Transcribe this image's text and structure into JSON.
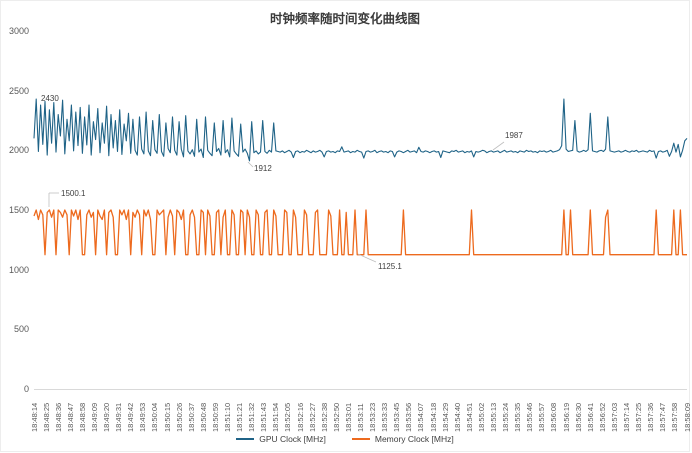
{
  "chart_data": {
    "type": "line",
    "title": "时钟频率随时间变化曲线图",
    "grid": false,
    "legend_position": "bottom",
    "y_axis": {
      "min": 0,
      "max": 3000,
      "ticks": [
        3000,
        2500,
        2000,
        1500,
        1000,
        500,
        0
      ]
    },
    "x_axis": {
      "start": "18:48:14",
      "end": "18:58:09",
      "labels": [
        "18:48:14",
        "18:48:25",
        "18:48:36",
        "18:48:47",
        "18:48:58",
        "18:49:09",
        "18:49:20",
        "18:49:31",
        "18:49:42",
        "18:49:53",
        "18:50:04",
        "18:50:15",
        "18:50:26",
        "18:50:37",
        "18:50:48",
        "18:50:59",
        "18:51:10",
        "18:51:21",
        "18:51:32",
        "18:51:43",
        "18:51:54",
        "18:52:05",
        "18:52:16",
        "18:52:27",
        "18:52:38",
        "18:52:50",
        "18:53:01",
        "18:53:11",
        "18:53:23",
        "18:53:33",
        "18:53:45",
        "18:53:56",
        "18:54:07",
        "18:54:18",
        "18:54:29",
        "18:54:40",
        "18:54:51",
        "18:55:02",
        "18:55:13",
        "18:55:24",
        "18:55:35",
        "18:55:46",
        "18:55:57",
        "18:56:08",
        "18:56:19",
        "18:56:30",
        "18:56:41",
        "18:56:52",
        "18:57:03",
        "18:57:14",
        "18:57:25",
        "18:57:36",
        "18:57:47",
        "18:57:58",
        "18:58:09"
      ]
    },
    "legend": [
      {
        "label": "GPU Clock [MHz]",
        "color": "#1f6387"
      },
      {
        "label": "Memory Clock [MHz]",
        "color": "#ed6a1e"
      }
    ],
    "annotations": [
      {
        "label": "2430",
        "x": 40,
        "y": 93,
        "lines": []
      },
      {
        "label": "1912",
        "x": 253,
        "y": 163,
        "lines": [
          [
            247,
            161,
            252,
            166
          ]
        ]
      },
      {
        "label": "1987",
        "x": 504,
        "y": 130,
        "lines": [
          [
            503,
            141,
            492,
            149
          ]
        ]
      },
      {
        "label": "1500.1",
        "x": 60,
        "y": 188,
        "lines": [
          [
            48,
            192,
            58,
            192
          ],
          [
            48,
            192,
            48,
            206
          ]
        ]
      },
      {
        "label": "1125.1",
        "x": 377,
        "y": 261,
        "lines": [
          [
            357,
            253,
            375,
            261
          ]
        ]
      }
    ],
    "series": [
      {
        "id": "gpu-clock-line",
        "name": "GPU Clock [MHz]",
        "color": "#1f6387",
        "width": 1.1,
        "stats": {
          "max": 2430,
          "min": 1912,
          "steady": 1987
        },
        "values": [
          2100,
          2430,
          1990,
          2380,
          2050,
          2410,
          1960,
          2340,
          2060,
          2400,
          1985,
          2300,
          2120,
          2420,
          1970,
          2260,
          2080,
          2380,
          1995,
          2320,
          2040,
          2360,
          1975,
          2280,
          2045,
          2380,
          1960,
          2240,
          2090,
          2350,
          1980,
          2230,
          2060,
          2370,
          1955,
          2300,
          2020,
          2250,
          1990,
          2340,
          1965,
          2220,
          2080,
          2310,
          1975,
          2260,
          2000,
          1960,
          2280,
          2010,
          1970,
          2320,
          1995,
          1955,
          2250,
          2005,
          1975,
          2300,
          1990,
          1950,
          2230,
          2015,
          1980,
          2280,
          2000,
          1960,
          2240,
          2010,
          1945,
          2290,
          1995,
          1970,
          2005,
          1950,
          2260,
          1985,
          2010,
          1940,
          2280,
          2000,
          1975,
          1955,
          2230,
          1990,
          2015,
          1960,
          2250,
          1980,
          2005,
          1945,
          2270,
          1995,
          1970,
          1950,
          2220,
          1985,
          2010,
          1975,
          1912,
          2240,
          1980,
          1995,
          1970,
          1985,
          2250,
          1990,
          1975,
          2000,
          1985,
          2230,
          1995,
          1990,
          1985,
          1995,
          1980,
          1990,
          2000,
          1985,
          1940,
          1990,
          1995,
          1980,
          1990,
          1985,
          2000,
          1990,
          1980,
          1995,
          1985,
          1990,
          2000,
          1985,
          1945,
          1990,
          1995,
          1985,
          1990,
          1980,
          1995,
          1990,
          2030,
          1985,
          1990,
          1995,
          1980,
          1990,
          1985,
          2000,
          1990,
          1985,
          1935,
          1990,
          1995,
          1985,
          1990,
          2000,
          1980,
          1990,
          1995,
          1985,
          1990,
          1980,
          1995,
          1990,
          1945,
          1985,
          1995,
          1990,
          1980,
          1990,
          2000,
          1985,
          1990,
          1995,
          1980,
          2025,
          1990,
          1985,
          1995,
          1990,
          1980,
          1990,
          1995,
          1985,
          1990,
          1940,
          1995,
          1990,
          1985,
          1980,
          1995,
          1990,
          2000,
          1985,
          1990,
          1995,
          1980,
          1990,
          1985,
          1995,
          1945,
          1990,
          1985,
          1990,
          2000,
          1995,
          1980,
          1990,
          1995,
          1985,
          1990,
          1995,
          1980,
          1990,
          2000,
          1985,
          1990,
          1995,
          1985,
          1990,
          1980,
          1995,
          1990,
          1985,
          2000,
          1990,
          1995,
          1985,
          1990,
          1980,
          1995,
          1990,
          1995,
          1985,
          1990,
          2000,
          1985,
          1990,
          1995,
          2005,
          2040,
          2430,
          2010,
          1990,
          1995,
          2000,
          2250,
          1995,
          1985,
          1990,
          2000,
          1990,
          2005,
          2310,
          1995,
          1990,
          1985,
          1995,
          2000,
          1990,
          2010,
          2280,
          1995,
          1990,
          1985,
          1990,
          1995,
          1985,
          1990,
          2000,
          1990,
          1985,
          1995,
          1990,
          2000,
          1985,
          1990,
          1995,
          1990,
          1985,
          2000,
          1990,
          1995,
          1935,
          1990,
          1995,
          1985,
          1990,
          2000,
          1950,
          1990,
          2060,
          1985,
          2050,
          1945,
          2000,
          2080,
          2100
        ]
      },
      {
        "id": "memory-clock-line",
        "name": "Memory Clock [MHz]",
        "color": "#ed6a1e",
        "width": 1.3,
        "stats": {
          "max": 1500.1,
          "min": 1125.1
        },
        "values": [
          1450,
          1500.1,
          1420,
          1500.1,
          1460,
          1125.1,
          1480,
          1500.1,
          1440,
          1500.1,
          1125.1,
          1500.1,
          1480,
          1440,
          1500.1,
          1460,
          1125.1,
          1500.1,
          1450,
          1500.1,
          1420,
          1500.1,
          1125.1,
          1125.1,
          1460,
          1500.1,
          1440,
          1480,
          1125.1,
          1500.1,
          1450,
          1420,
          1500.1,
          1125.1,
          1480,
          1500.1,
          1440,
          1125.1,
          1125.1,
          1500.1,
          1460,
          1500.1,
          1420,
          1500.1,
          1125.1,
          1480,
          1440,
          1500.1,
          1460,
          1125.1,
          1500.1,
          1450,
          1500.1,
          1420,
          1125.1,
          1125.1,
          1500.1,
          1460,
          1480,
          1500.1,
          1125.1,
          1440,
          1500.1,
          1450,
          1125.1,
          1500.1,
          1480,
          1420,
          1500.1,
          1125.1,
          1125.1,
          1460,
          1500.1,
          1440,
          1125.1,
          1125.1,
          1500.1,
          1480,
          1125.1,
          1500.1,
          1450,
          1125.1,
          1125.1,
          1480,
          1500.1,
          1125.1,
          1440,
          1500.1,
          1125.1,
          1125.1,
          1500.1,
          1460,
          1125.1,
          1125.1,
          1500.1,
          1480,
          1125.1,
          1500.1,
          1440,
          1125.1,
          1125.1,
          1500.1,
          1460,
          1125.1,
          1125.1,
          1480,
          1500.1,
          1125.1,
          1125.1,
          1500.1,
          1450,
          1125.1,
          1125.1,
          1125.1,
          1500.1,
          1480,
          1125.1,
          1125.1,
          1500.1,
          1440,
          1125.1,
          1125.1,
          1125.1,
          1500.1,
          1460,
          1125.1,
          1125.1,
          1125.1,
          1480,
          1500.1,
          1125.1,
          1125.1,
          1125.1,
          1125.1,
          1500.1,
          1450,
          1125.1,
          1125.1,
          1125.1,
          1500.1,
          1125.1,
          1125.1,
          1480,
          1125.1,
          1125.1,
          1125.1,
          1500.1,
          1125.1,
          1125.1,
          1125.1,
          1125.1,
          1500.1,
          1125.1,
          1125.1,
          1125.1,
          1125.1,
          1125.1,
          1125.1,
          1125.1,
          1125.1,
          1125.1,
          1125.1,
          1125.1,
          1125.1,
          1125.1,
          1125.1,
          1125.1,
          1125.1,
          1500.1,
          1125.1,
          1125.1,
          1125.1,
          1125.1,
          1125.1,
          1125.1,
          1125.1,
          1125.1,
          1125.1,
          1125.1,
          1125.1,
          1125.1,
          1125.1,
          1125.1,
          1125.1,
          1125.1,
          1125.1,
          1125.1,
          1125.1,
          1125.1,
          1125.1,
          1125.1,
          1125.1,
          1125.1,
          1125.1,
          1125.1,
          1125.1,
          1125.1,
          1125.1,
          1125.1,
          1500.1,
          1125.1,
          1125.1,
          1125.1,
          1125.1,
          1125.1,
          1125.1,
          1125.1,
          1125.1,
          1125.1,
          1125.1,
          1125.1,
          1125.1,
          1125.1,
          1125.1,
          1125.1,
          1125.1,
          1125.1,
          1125.1,
          1125.1,
          1125.1,
          1125.1,
          1125.1,
          1125.1,
          1125.1,
          1125.1,
          1125.1,
          1125.1,
          1125.1,
          1125.1,
          1125.1,
          1125.1,
          1125.1,
          1125.1,
          1125.1,
          1125.1,
          1125.1,
          1125.1,
          1125.1,
          1125.1,
          1125.1,
          1125.1,
          1500.1,
          1125.1,
          1125.1,
          1500.1,
          1125.1,
          1125.1,
          1125.1,
          1125.1,
          1125.1,
          1125.1,
          1125.1,
          1125.1,
          1500.1,
          1125.1,
          1125.1,
          1125.1,
          1125.1,
          1125.1,
          1125.1,
          1440,
          1500.1,
          1125.1,
          1125.1,
          1125.1,
          1125.1,
          1125.1,
          1125.1,
          1125.1,
          1125.1,
          1125.1,
          1125.1,
          1125.1,
          1125.1,
          1125.1,
          1125.1,
          1125.1,
          1125.1,
          1125.1,
          1125.1,
          1125.1,
          1125.1,
          1125.1,
          1500.1,
          1125.1,
          1125.1,
          1125.1,
          1125.1,
          1125.1,
          1125.1,
          1125.1,
          1500.1,
          1125.1,
          1125.1,
          1500.1,
          1125.1,
          1125.1,
          1125.1
        ]
      }
    ]
  }
}
